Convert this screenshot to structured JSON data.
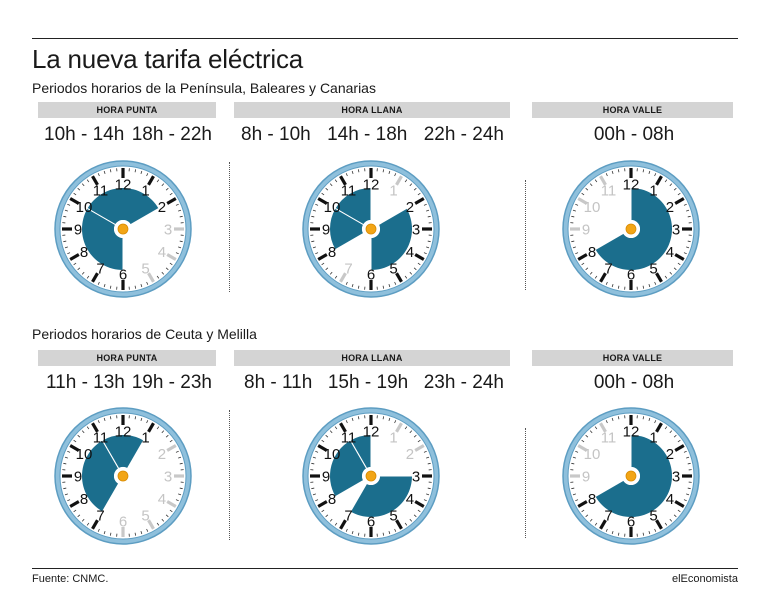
{
  "title": "La nueva tarifa eléctrica",
  "sections": [
    {
      "subtitle": "Periodos horarios de la Península, Baleares y Canarias",
      "periods": [
        {
          "label": "HORA PUNTA",
          "ranges": [
            "10h - 14h",
            "18h - 22h"
          ],
          "arcs": [
            [
              10,
              14
            ],
            [
              18,
              22
            ]
          ]
        },
        {
          "label": "HORA LLANA",
          "ranges": [
            "8h - 10h",
            "14h - 18h",
            "22h - 24h"
          ],
          "arcs": [
            [
              8,
              10
            ],
            [
              14,
              18
            ],
            [
              22,
              24
            ]
          ]
        },
        {
          "label": "HORA VALLE",
          "ranges": [
            "00h - 08h"
          ],
          "arcs": [
            [
              0,
              8
            ]
          ]
        }
      ]
    },
    {
      "subtitle": "Periodos horarios de Ceuta y Melilla",
      "periods": [
        {
          "label": "HORA PUNTA",
          "ranges": [
            "11h - 13h",
            "19h - 23h"
          ],
          "arcs": [
            [
              11,
              13
            ],
            [
              19,
              23
            ]
          ]
        },
        {
          "label": "HORA LLANA",
          "ranges": [
            "8h - 11h",
            "15h - 19h",
            "23h - 24h"
          ],
          "arcs": [
            [
              8,
              11
            ],
            [
              15,
              19
            ],
            [
              23,
              24
            ]
          ]
        },
        {
          "label": "HORA VALLE",
          "ranges": [
            "00h - 08h"
          ],
          "arcs": [
            [
              0,
              8
            ]
          ]
        }
      ]
    }
  ],
  "source": "Fuente: CNMC.",
  "brand": "elEconomista",
  "colors": {
    "fill": "#1b6e8d",
    "rim": "#8fc0dc",
    "rim_dark": "#5d9dc2",
    "center": "#f2a516",
    "band": "#d4d4d4"
  }
}
